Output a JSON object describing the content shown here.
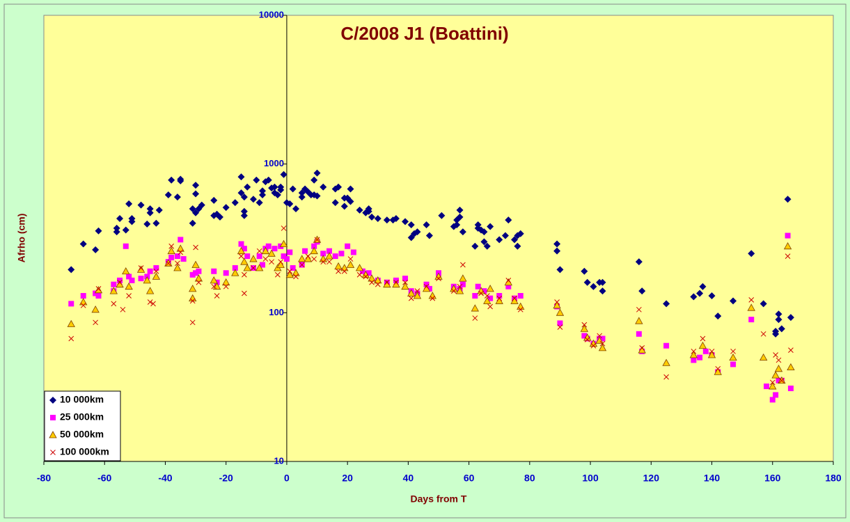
{
  "chart_data": {
    "type": "scatter",
    "title": "C/2008 J1 (Boattini)",
    "x_label": "Days from T",
    "y_label": "Afrho (cm)",
    "xlim": [
      -80,
      180
    ],
    "xticks": [
      -80,
      -60,
      -40,
      -20,
      0,
      20,
      40,
      60,
      80,
      100,
      120,
      140,
      160,
      180
    ],
    "ylim": [
      10,
      10000
    ],
    "yticks": [
      10,
      100,
      1000,
      10000
    ],
    "log_y": true,
    "y_axis_at": 0,
    "legend": "lower left",
    "series": [
      {
        "name": "10 000km",
        "color": "#000080",
        "marker": "diamond",
        "x": [
          -71,
          -67,
          -63,
          -62,
          -56,
          -56,
          -55,
          -53,
          -52,
          -51,
          -51,
          -48,
          -46,
          -45,
          -45,
          -43,
          -42,
          -39,
          -38,
          -36,
          -35,
          -35,
          -31,
          -31,
          -30,
          -30,
          -30,
          -29,
          -28,
          -24,
          -24,
          -23,
          -22,
          -20,
          -17,
          -15,
          -15,
          -14,
          -14,
          -14,
          -13,
          -11,
          -10,
          -9,
          -8,
          -8,
          -7,
          -6,
          -5,
          -4,
          -4,
          -3,
          -2,
          -2,
          -1,
          0,
          1,
          2,
          3,
          5,
          5,
          6,
          7,
          8,
          9,
          9,
          10,
          10,
          12,
          16,
          16,
          17,
          19,
          19,
          20,
          21,
          21,
          24,
          26,
          27,
          27,
          28,
          30,
          33,
          35,
          36,
          39,
          41,
          41,
          42,
          43,
          46,
          47,
          51,
          55,
          56,
          56,
          57,
          57,
          58,
          62,
          63,
          63,
          64,
          65,
          65,
          66,
          67,
          70,
          72,
          73,
          75,
          76,
          76,
          77,
          89,
          89,
          90,
          98,
          99,
          101,
          103,
          104,
          104,
          116,
          117,
          125,
          134,
          136,
          137,
          140,
          142,
          147,
          153,
          157,
          161,
          161,
          162,
          162,
          163,
          165,
          166
        ],
        "values": [
          195,
          290,
          265,
          355,
          350,
          370,
          430,
          360,
          540,
          430,
          410,
          530,
          395,
          500,
          470,
          400,
          490,
          620,
          780,
          600,
          790,
          770,
          400,
          500,
          720,
          630,
          470,
          500,
          530,
          450,
          570,
          460,
          440,
          510,
          550,
          640,
          820,
          600,
          480,
          450,
          700,
          580,
          780,
          550,
          660,
          620,
          760,
          780,
          690,
          700,
          640,
          620,
          670,
          700,
          850,
          550,
          540,
          680,
          500,
          640,
          600,
          680,
          650,
          620,
          780,
          620,
          870,
          610,
          700,
          680,
          550,
          700,
          590,
          520,
          590,
          680,
          560,
          490,
          470,
          480,
          500,
          440,
          430,
          420,
          420,
          430,
          410,
          390,
          320,
          340,
          350,
          390,
          330,
          450,
          380,
          420,
          390,
          490,
          440,
          350,
          280,
          390,
          370,
          360,
          300,
          350,
          280,
          380,
          310,
          330,
          420,
          310,
          330,
          280,
          340,
          290,
          260,
          195,
          190,
          160,
          150,
          160,
          160,
          140,
          220,
          140,
          115,
          128,
          135,
          150,
          130,
          95,
          120,
          250,
          115,
          75,
          72,
          90,
          98,
          78,
          580,
          93
        ]
      },
      {
        "name": "25 000km",
        "color": "#ff00ff",
        "marker": "square",
        "x": [
          -71,
          -67,
          -63,
          -62,
          -57,
          -57,
          -55,
          -53,
          -52,
          -51,
          -48,
          -46,
          -45,
          -43,
          -39,
          -38,
          -36,
          -35,
          -34,
          -31,
          -30,
          -29,
          -24,
          -23,
          -20,
          -17,
          -15,
          -14,
          -13,
          -11,
          -9,
          -8,
          -7,
          -6,
          -4,
          -2,
          -1,
          0,
          1,
          2,
          5,
          6,
          9,
          10,
          12,
          14,
          16,
          18,
          20,
          22,
          25,
          27,
          30,
          33,
          36,
          39,
          41,
          43,
          46,
          47,
          50,
          55,
          57,
          58,
          62,
          63,
          65,
          67,
          70,
          73,
          75,
          77,
          89,
          90,
          98,
          99,
          101,
          103,
          104,
          116,
          117,
          125,
          134,
          136,
          138,
          140,
          142,
          147,
          153,
          158,
          160,
          161,
          162,
          163,
          165,
          166
        ],
        "values": [
          115,
          130,
          135,
          130,
          155,
          140,
          165,
          280,
          175,
          165,
          170,
          175,
          190,
          200,
          220,
          235,
          240,
          310,
          230,
          180,
          185,
          190,
          190,
          160,
          185,
          200,
          290,
          270,
          240,
          200,
          240,
          210,
          270,
          280,
          270,
          280,
          240,
          230,
          255,
          200,
          210,
          260,
          280,
          300,
          250,
          260,
          240,
          250,
          280,
          255,
          190,
          185,
          165,
          160,
          165,
          170,
          140,
          135,
          155,
          145,
          185,
          150,
          145,
          155,
          130,
          150,
          140,
          125,
          130,
          150,
          125,
          130,
          110,
          85,
          70,
          67,
          62,
          67,
          67,
          72,
          55,
          60,
          48,
          50,
          55,
          52,
          40,
          45,
          90,
          32,
          26,
          28,
          35,
          35,
          330,
          31
        ]
      },
      {
        "name": "50 000km",
        "color": "#ffcc00",
        "marker": "triangle",
        "x": [
          -71,
          -67,
          -63,
          -62,
          -57,
          -55,
          -53,
          -52,
          -48,
          -46,
          -45,
          -43,
          -39,
          -38,
          -36,
          -35,
          -31,
          -31,
          -30,
          -29,
          -24,
          -23,
          -20,
          -17,
          -15,
          -14,
          -13,
          -11,
          -9,
          -7,
          -5,
          -3,
          -2,
          -1,
          1,
          3,
          5,
          7,
          9,
          10,
          12,
          14,
          17,
          19,
          21,
          24,
          26,
          28,
          30,
          33,
          36,
          39,
          41,
          43,
          46,
          48,
          50,
          55,
          57,
          58,
          62,
          64,
          66,
          67,
          70,
          73,
          75,
          77,
          89,
          90,
          98,
          99,
          101,
          103,
          104,
          116,
          117,
          125,
          134,
          137,
          140,
          142,
          147,
          153,
          157,
          160,
          161,
          162,
          163,
          165,
          166
        ],
        "values": [
          84,
          118,
          105,
          142,
          140,
          155,
          190,
          150,
          195,
          165,
          140,
          175,
          215,
          260,
          200,
          270,
          145,
          125,
          210,
          170,
          165,
          150,
          160,
          185,
          260,
          220,
          200,
          230,
          200,
          260,
          250,
          200,
          210,
          290,
          180,
          185,
          230,
          230,
          260,
          310,
          230,
          240,
          205,
          200,
          210,
          200,
          180,
          170,
          165,
          155,
          155,
          150,
          135,
          130,
          145,
          130,
          175,
          145,
          140,
          170,
          107,
          140,
          120,
          145,
          120,
          160,
          120,
          110,
          112,
          100,
          78,
          68,
          62,
          65,
          58,
          88,
          56,
          46,
          52,
          60,
          52,
          40,
          50,
          108,
          50,
          32,
          38,
          42,
          35,
          280,
          43
        ]
      },
      {
        "name": "100 000km",
        "color": "#cc0000",
        "marker": "x",
        "x": [
          -71,
          -67,
          -63,
          -62,
          -57,
          -55,
          -54,
          -52,
          -48,
          -45,
          -44,
          -43,
          -39,
          -38,
          -36,
          -35,
          -31,
          -31,
          -30,
          -29,
          -24,
          -23,
          -20,
          -15,
          -14,
          -14,
          -11,
          -9,
          -7,
          -5,
          -3,
          -2,
          -1,
          1,
          3,
          5,
          7,
          9,
          10,
          12,
          14,
          17,
          19,
          21,
          24,
          26,
          28,
          30,
          33,
          36,
          39,
          41,
          43,
          46,
          48,
          50,
          55,
          57,
          58,
          62,
          64,
          66,
          67,
          70,
          73,
          75,
          77,
          89,
          90,
          98,
          99,
          101,
          103,
          104,
          116,
          117,
          125,
          134,
          137,
          140,
          142,
          147,
          153,
          157,
          160,
          161,
          162,
          163,
          165,
          166
        ],
        "values": [
          67,
          112,
          86,
          145,
          115,
          160,
          105,
          130,
          200,
          118,
          115,
          190,
          215,
          280,
          215,
          255,
          86,
          120,
          275,
          160,
          150,
          130,
          150,
          240,
          180,
          135,
          200,
          260,
          230,
          220,
          180,
          220,
          370,
          190,
          175,
          210,
          240,
          230,
          310,
          220,
          220,
          190,
          190,
          230,
          180,
          175,
          160,
          155,
          160,
          160,
          160,
          125,
          140,
          150,
          125,
          170,
          140,
          150,
          210,
          92,
          135,
          130,
          110,
          125,
          165,
          125,
          105,
          118,
          80,
          83,
          66,
          60,
          70,
          62,
          105,
          58,
          37,
          55,
          67,
          55,
          42,
          55,
          122,
          72,
          34,
          52,
          48,
          35,
          240,
          56
        ]
      }
    ]
  }
}
